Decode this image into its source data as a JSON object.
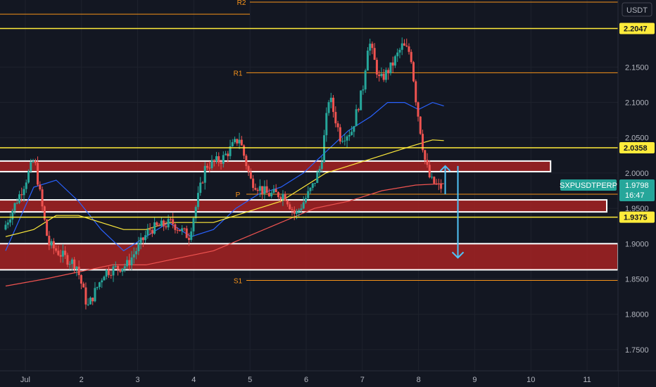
{
  "chart_data": {
    "type": "candlestick",
    "symbol": "SXPUSDTPERP",
    "quote_currency": "USDT",
    "current_price": "1.9798",
    "countdown": "16:47",
    "y_ticks": [
      "2.1500",
      "2.1000",
      "2.0500",
      "2.0000",
      "1.9500",
      "1.9000",
      "1.8500",
      "1.8000",
      "1.7500"
    ],
    "ylim": [
      1.72,
      2.245
    ],
    "x_ticks": [
      "Jul",
      "2",
      "3",
      "4",
      "5",
      "6",
      "7",
      "8",
      "9",
      "10",
      "11"
    ],
    "x_tick_values": [
      0.05,
      1.05,
      2.05,
      3.05,
      4.05,
      5.05,
      6.05,
      7.05,
      8.05,
      9.05,
      10.05
    ],
    "xlim": [
      -0.4,
      10.6
    ],
    "pivot_levels": [
      {
        "label": "R2",
        "value": 2.242
      },
      {
        "label": "R1",
        "value": 2.142
      },
      {
        "label": "P",
        "value": 1.97
      },
      {
        "label": "S1",
        "value": 1.848
      }
    ],
    "price_lines": [
      {
        "label": "2.2047",
        "value": 2.2047
      },
      {
        "label": "2.0358",
        "value": 2.0358
      },
      {
        "label": "1.9375",
        "value": 1.9375
      }
    ],
    "zones": [
      {
        "y_top": 2.017,
        "y_bottom": 2.002,
        "x_end": 9.4
      },
      {
        "y_top": 1.962,
        "y_bottom": 1.945,
        "x_end": 10.4
      },
      {
        "y_top": 1.9,
        "y_bottom": 1.863,
        "x_end": 10.6
      }
    ],
    "projection": {
      "x": 7.75,
      "up_from": 1.97,
      "up_to": 2.01,
      "down_from": 2.01,
      "down_to": 1.88
    },
    "ohlc_keypoints": [
      [
        -0.3,
        1.92
      ],
      [
        0.05,
        1.98
      ],
      [
        0.25,
        2.02
      ],
      [
        0.5,
        1.9
      ],
      [
        0.8,
        1.88
      ],
      [
        1.0,
        1.87
      ],
      [
        1.2,
        1.81
      ],
      [
        1.5,
        1.86
      ],
      [
        1.9,
        1.87
      ],
      [
        2.3,
        1.92
      ],
      [
        2.7,
        1.93
      ],
      [
        3.0,
        1.91
      ],
      [
        3.3,
        2.01
      ],
      [
        3.6,
        2.02
      ],
      [
        3.9,
        2.05
      ],
      [
        4.1,
        1.99
      ],
      [
        4.4,
        1.97
      ],
      [
        4.7,
        1.97
      ],
      [
        4.9,
        1.94
      ],
      [
        5.2,
        1.98
      ],
      [
        5.35,
        2.01
      ],
      [
        5.5,
        2.11
      ],
      [
        5.7,
        2.05
      ],
      [
        5.9,
        2.06
      ],
      [
        6.1,
        2.12
      ],
      [
        6.2,
        2.19
      ],
      [
        6.4,
        2.13
      ],
      [
        6.6,
        2.15
      ],
      [
        6.8,
        2.18
      ],
      [
        6.95,
        2.17
      ],
      [
        7.05,
        2.1
      ],
      [
        7.2,
        2.02
      ],
      [
        7.3,
        1.99
      ],
      [
        7.45,
        1.98
      ]
    ],
    "moving_averages": [
      {
        "color": "#2962ff",
        "points": [
          [
            -0.3,
            1.89
          ],
          [
            0.2,
            1.98
          ],
          [
            0.6,
            1.99
          ],
          [
            1.0,
            1.96
          ],
          [
            1.4,
            1.92
          ],
          [
            1.8,
            1.89
          ],
          [
            2.2,
            1.91
          ],
          [
            2.6,
            1.93
          ],
          [
            3.0,
            1.91
          ],
          [
            3.4,
            1.92
          ],
          [
            3.8,
            1.95
          ],
          [
            4.2,
            1.97
          ],
          [
            4.6,
            1.98
          ],
          [
            5.0,
            2.0
          ],
          [
            5.4,
            2.03
          ],
          [
            5.8,
            2.06
          ],
          [
            6.2,
            2.08
          ],
          [
            6.5,
            2.1
          ],
          [
            6.8,
            2.1
          ],
          [
            7.05,
            2.09
          ],
          [
            7.3,
            2.1
          ],
          [
            7.5,
            2.095
          ]
        ]
      },
      {
        "color": "#ffeb3b",
        "points": [
          [
            -0.3,
            1.91
          ],
          [
            0.2,
            1.92
          ],
          [
            0.6,
            1.94
          ],
          [
            1.0,
            1.94
          ],
          [
            1.4,
            1.93
          ],
          [
            1.8,
            1.92
          ],
          [
            2.2,
            1.92
          ],
          [
            2.6,
            1.93
          ],
          [
            3.0,
            1.93
          ],
          [
            3.4,
            1.93
          ],
          [
            3.8,
            1.94
          ],
          [
            4.2,
            1.95
          ],
          [
            4.6,
            1.96
          ],
          [
            5.0,
            1.98
          ],
          [
            5.4,
            2.0
          ],
          [
            5.8,
            2.01
          ],
          [
            6.2,
            2.02
          ],
          [
            6.6,
            2.03
          ],
          [
            7.0,
            2.04
          ],
          [
            7.3,
            2.047
          ],
          [
            7.5,
            2.046
          ]
        ]
      },
      {
        "color": "#ef5350",
        "points": [
          [
            -0.3,
            1.84
          ],
          [
            0.4,
            1.85
          ],
          [
            1.0,
            1.86
          ],
          [
            1.6,
            1.87
          ],
          [
            2.2,
            1.87
          ],
          [
            2.8,
            1.88
          ],
          [
            3.4,
            1.89
          ],
          [
            4.0,
            1.91
          ],
          [
            4.6,
            1.93
          ],
          [
            5.2,
            1.95
          ],
          [
            5.8,
            1.96
          ],
          [
            6.4,
            1.975
          ],
          [
            7.0,
            1.983
          ],
          [
            7.5,
            1.985
          ]
        ]
      }
    ]
  }
}
